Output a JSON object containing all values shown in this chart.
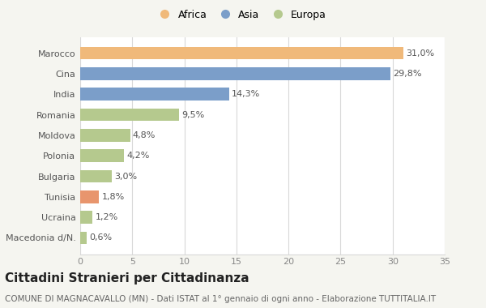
{
  "categories": [
    "Macedonia d/N.",
    "Ucraina",
    "Tunisia",
    "Bulgaria",
    "Polonia",
    "Moldova",
    "Romania",
    "India",
    "Cina",
    "Marocco"
  ],
  "values": [
    0.6,
    1.2,
    1.8,
    3.0,
    4.2,
    4.8,
    9.5,
    14.3,
    29.8,
    31.0
  ],
  "labels": [
    "0,6%",
    "1,2%",
    "1,8%",
    "3,0%",
    "4,2%",
    "4,8%",
    "9,5%",
    "14,3%",
    "29,8%",
    "31,0%"
  ],
  "colors": [
    "#b5c98e",
    "#b5c98e",
    "#e8956d",
    "#b5c98e",
    "#b5c98e",
    "#b5c98e",
    "#b5c98e",
    "#7b9ec9",
    "#7b9ec9",
    "#f0b97a"
  ],
  "legend_labels": [
    "Africa",
    "Asia",
    "Europa"
  ],
  "legend_colors": [
    "#f0b97a",
    "#7b9ec9",
    "#b5c98e"
  ],
  "title": "Cittadini Stranieri per Cittadinanza",
  "subtitle": "COMUNE DI MAGNACAVALLO (MN) - Dati ISTAT al 1° gennaio di ogni anno - Elaborazione TUTTITALIA.IT",
  "xlim": [
    0,
    35
  ],
  "xticks": [
    0,
    5,
    10,
    15,
    20,
    25,
    30,
    35
  ],
  "background_color": "#f5f5f0",
  "bar_background": "#ffffff",
  "grid_color": "#d8d8d8",
  "title_fontsize": 11,
  "subtitle_fontsize": 7.5,
  "label_fontsize": 8,
  "tick_fontsize": 8,
  "legend_fontsize": 9
}
